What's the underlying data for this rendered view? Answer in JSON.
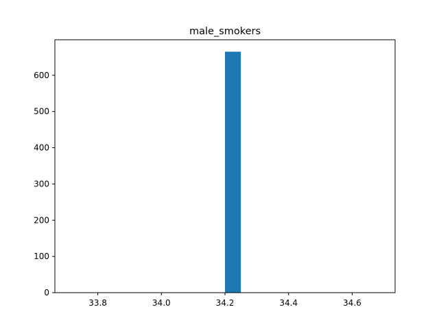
{
  "chart_data": {
    "type": "bar",
    "title": "male_smokers",
    "xlabel": "",
    "ylabel": "",
    "xlim": [
      33.665,
      34.735
    ],
    "ylim": [
      0,
      698
    ],
    "xticks": [
      33.8,
      34.0,
      34.2,
      34.4,
      34.6
    ],
    "xtick_labels": [
      "33.8",
      "34.0",
      "34.2",
      "34.4",
      "34.6"
    ],
    "yticks": [
      0,
      100,
      200,
      300,
      400,
      500,
      600
    ],
    "ytick_labels": [
      "0",
      "100",
      "200",
      "300",
      "400",
      "500",
      "600"
    ],
    "bars": [
      {
        "x_start": 34.2,
        "x_end": 34.25,
        "value": 665
      }
    ],
    "grid": false,
    "colors": {
      "bar": "#1f77b4",
      "axes": "#000000"
    }
  }
}
